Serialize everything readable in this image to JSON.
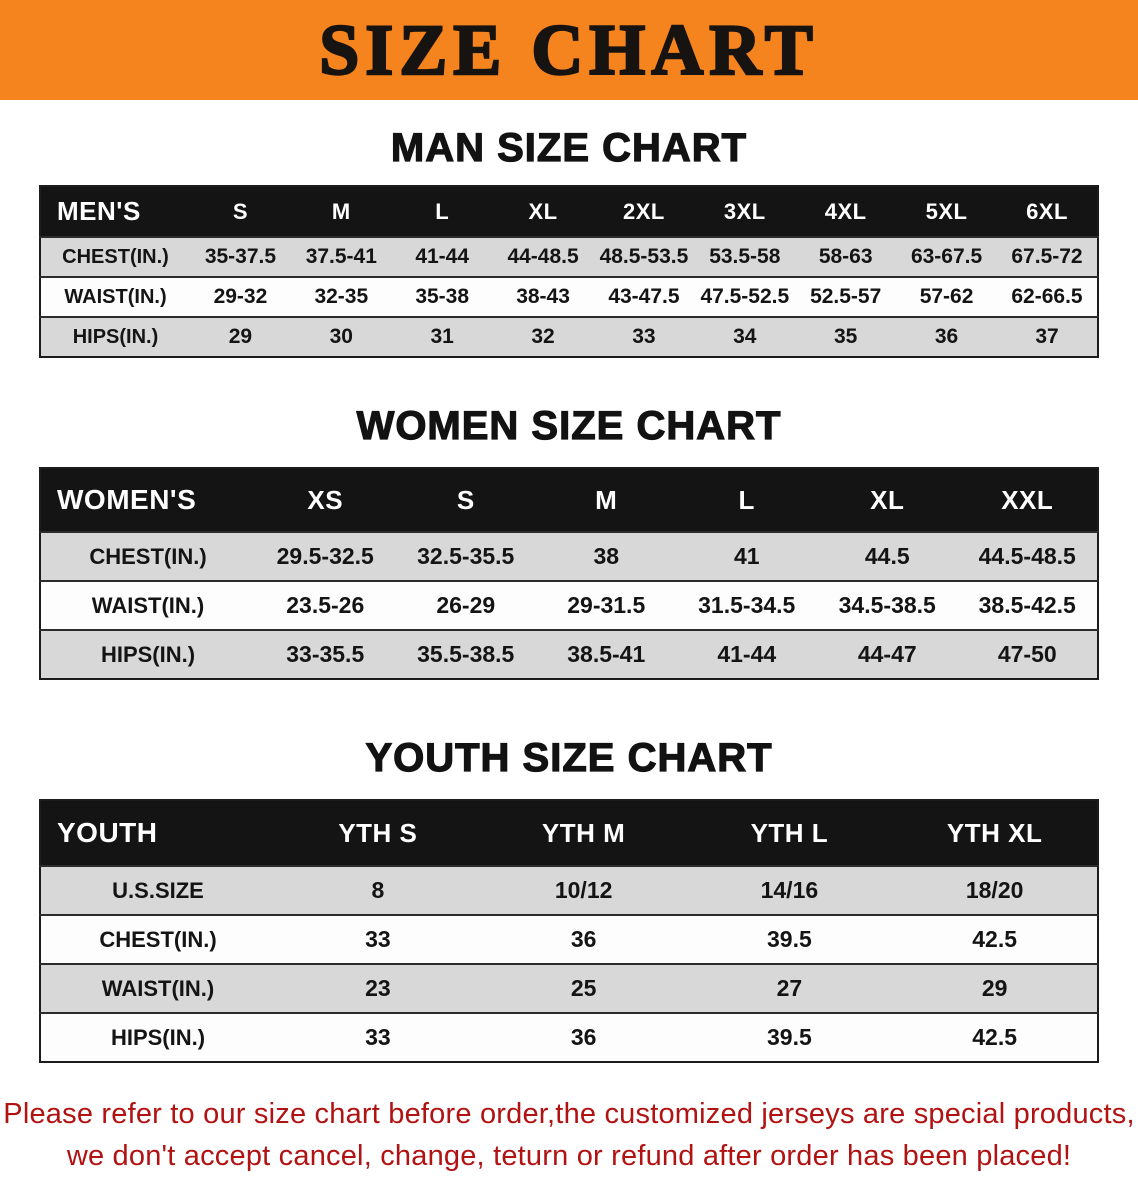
{
  "banner": {
    "title": "SIZE CHART"
  },
  "colors": {
    "banner_bg": "#f5831e",
    "table_header_bg": "#141414",
    "row_stripe": "#d8d8d8",
    "disclaimer_text": "#b11212"
  },
  "sections": [
    {
      "id": "men",
      "heading": "MAN SIZE CHART",
      "table": {
        "header": [
          "MEN'S",
          "S",
          "M",
          "L",
          "XL",
          "2XL",
          "3XL",
          "4XL",
          "5XL",
          "6XL"
        ],
        "rows": [
          {
            "label": "CHEST(IN.)",
            "values": [
              "35-37.5",
              "37.5-41",
              "41-44",
              "44-48.5",
              "48.5-53.5",
              "53.5-58",
              "58-63",
              "63-67.5",
              "67.5-72"
            ]
          },
          {
            "label": "WAIST(IN.)",
            "values": [
              "29-32",
              "32-35",
              "35-38",
              "38-43",
              "43-47.5",
              "47.5-52.5",
              "52.5-57",
              "57-62",
              "62-66.5"
            ]
          },
          {
            "label": "HIPS(IN.)",
            "values": [
              "29",
              "30",
              "31",
              "32",
              "33",
              "34",
              "35",
              "36",
              "37"
            ]
          }
        ]
      }
    },
    {
      "id": "women",
      "heading": "WOMEN SIZE CHART",
      "table": {
        "header": [
          "WOMEN'S",
          "XS",
          "S",
          "M",
          "L",
          "XL",
          "XXL"
        ],
        "rows": [
          {
            "label": "CHEST(IN.)",
            "values": [
              "29.5-32.5",
              "32.5-35.5",
              "38",
              "41",
              "44.5",
              "44.5-48.5"
            ]
          },
          {
            "label": "WAIST(IN.)",
            "values": [
              "23.5-26",
              "26-29",
              "29-31.5",
              "31.5-34.5",
              "34.5-38.5",
              "38.5-42.5"
            ]
          },
          {
            "label": "HIPS(IN.)",
            "values": [
              "33-35.5",
              "35.5-38.5",
              "38.5-41",
              "41-44",
              "44-47",
              "47-50"
            ]
          }
        ]
      }
    },
    {
      "id": "youth",
      "heading": "YOUTH SIZE CHART",
      "table": {
        "header": [
          "YOUTH",
          "YTH S",
          "YTH M",
          "YTH L",
          "YTH XL"
        ],
        "rows": [
          {
            "label": "U.S.SIZE",
            "values": [
              "8",
              "10/12",
              "14/16",
              "18/20"
            ]
          },
          {
            "label": "CHEST(IN.)",
            "values": [
              "33",
              "36",
              "39.5",
              "42.5"
            ]
          },
          {
            "label": "WAIST(IN.)",
            "values": [
              "23",
              "25",
              "27",
              "29"
            ]
          },
          {
            "label": "HIPS(IN.)",
            "values": [
              "33",
              "36",
              "39.5",
              "42.5"
            ]
          }
        ]
      }
    }
  ],
  "disclaimer": {
    "line1": "Please refer to our size chart before order,the customized jerseys are special products,",
    "line2": "we don't accept cancel, change, teturn or refund after order has been placed!"
  }
}
